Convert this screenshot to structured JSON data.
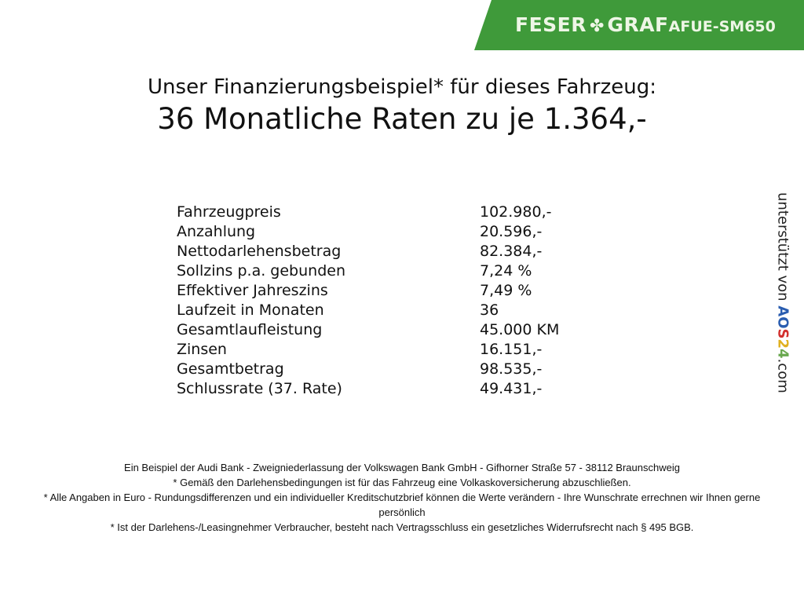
{
  "banner": {
    "brand_left": "FESER",
    "brand_right": "GRAF",
    "code": "AFUE-SM650",
    "logo_icon": "clover-icon",
    "color": "#3f9a3a"
  },
  "header": {
    "line1": "Unser Finanzierungsbeispiel* für dieses Fahrzeug:",
    "line2": "36 Monatliche Raten zu je 1.364,-"
  },
  "details": [
    {
      "label": "Fahrzeugpreis",
      "value": "102.980,-"
    },
    {
      "label": "Anzahlung",
      "value": "20.596,-"
    },
    {
      "label": "Nettodarlehensbetrag",
      "value": "82.384,-"
    },
    {
      "label": "Sollzins p.a. gebunden",
      "value": "7,24 %"
    },
    {
      "label": "Effektiver Jahreszins",
      "value": "7,49 %"
    },
    {
      "label": "Laufzeit in Monaten",
      "value": "36"
    },
    {
      "label": "Gesamtlaufleistung",
      "value": "45.000 KM"
    },
    {
      "label": "Zinsen",
      "value": "16.151,-"
    },
    {
      "label": "Gesamtbetrag",
      "value": "98.535,-"
    },
    {
      "label": "Schlussrate (37. Rate)",
      "value": "49.431,-"
    }
  ],
  "side": {
    "prefix": "unterstützt von",
    "logo": "AOS24",
    "suffix": ".com"
  },
  "footer": [
    "Ein Beispiel der Audi Bank - Zweigniederlassung der Volkswagen Bank GmbH - Gifhorner Straße 57 - 38112 Braunschweig",
    "* Gemäß den Darlehensbedingungen ist für das Fahrzeug eine Volkaskoversicherung abzuschließen.",
    "* Alle Angaben in Euro - Rundungsdifferenzen und ein individueller Kreditschutzbrief können die Werte verändern - Ihre Wunschrate errechnen wir Ihnen gerne persönlich",
    "* Ist der Darlehens-/Leasingnehmer Verbraucher, besteht nach Vertragsschluss ein gesetzliches Widerrufsrecht nach § 495 BGB."
  ]
}
